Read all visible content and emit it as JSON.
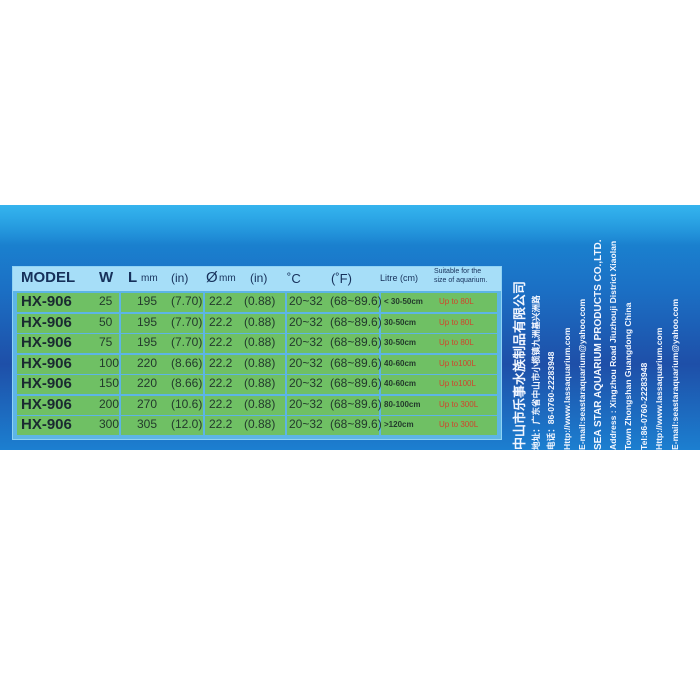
{
  "table": {
    "headers": {
      "model": "MODEL",
      "w": "W",
      "l": "L",
      "l_unit": "mm",
      "l_in": "(in)",
      "dia": "Ø",
      "dia_unit": "mm",
      "dia_in": "(in)",
      "c": "˚C",
      "f": "(˚F)",
      "litre": "Litre (cm)",
      "suitable1": "Suitable for the",
      "suitable2": "size of aquarium."
    },
    "rows": [
      {
        "model": "HX-906",
        "w": "25",
        "l": "195",
        "l_in": "(7.70)",
        "d": "22.2",
        "d_in": "(0.88)",
        "c": "20~32",
        "f": "(68~89.6)",
        "cm": "< 30-50cm",
        "vol": "Up to 80L"
      },
      {
        "model": "HX-906",
        "w": "50",
        "l": "195",
        "l_in": "(7.70)",
        "d": "22.2",
        "d_in": "(0.88)",
        "c": "20~32",
        "f": "(68~89.6)",
        "cm": "30-50cm",
        "vol": "Up to 80L"
      },
      {
        "model": "HX-906",
        "w": "75",
        "l": "195",
        "l_in": "(7.70)",
        "d": "22.2",
        "d_in": "(0.88)",
        "c": "20~32",
        "f": "(68~89.6)",
        "cm": "30-50cm",
        "vol": "Up to 80L"
      },
      {
        "model": "HX-906",
        "w": "100",
        "l": "220",
        "l_in": "(8.66)",
        "d": "22.2",
        "d_in": "(0.88)",
        "c": "20~32",
        "f": "(68~89.6)",
        "cm": "40-60cm",
        "vol": "Up to100L"
      },
      {
        "model": "HX-906",
        "w": "150",
        "l": "220",
        "l_in": "(8.66)",
        "d": "22.2",
        "d_in": "(0.88)",
        "c": "20~32",
        "f": "(68~89.6)",
        "cm": "40-60cm",
        "vol": "Up to100L"
      },
      {
        "model": "HX-906",
        "w": "200",
        "l": "270",
        "l_in": "(10.6)",
        "d": "22.2",
        "d_in": "(0.88)",
        "c": "20~32",
        "f": "(68~89.6)",
        "cm": "80-100cm",
        "vol": "Up to 300L"
      },
      {
        "model": "HX-906",
        "w": "300",
        "l": "305",
        "l_in": "(12.0)",
        "d": "22.2",
        "d_in": "(0.88)",
        "c": "20~32",
        "f": "(68~89.6)",
        "cm": ">120cm",
        "vol": "Up to 300L"
      }
    ]
  },
  "company": {
    "lines": [
      "中山市乐事水族制品有限公司",
      "地址：广东省中山市小榄镇九洲基兴洲路",
      "电话：86-0760-22283948",
      "Http://www.lassaquarium.com",
      "E-mail:seastaraquarium@yahoo.com",
      "SEA STAR AQUARIUM PRODUCTS CO.,LTD.",
      "Address : Xingzhou Road Jiuzhouji District Xiaolan",
      "Town Zhongshan Guangdong China",
      "Tel:86-0760-22283948",
      "Http://www.lassaquarium.com",
      "E-mail:seastaraquarium@yahoo.com"
    ]
  },
  "colors": {
    "band": "#1e5fb4",
    "cell": "#6fc064",
    "volume_text": "#d0452c"
  }
}
